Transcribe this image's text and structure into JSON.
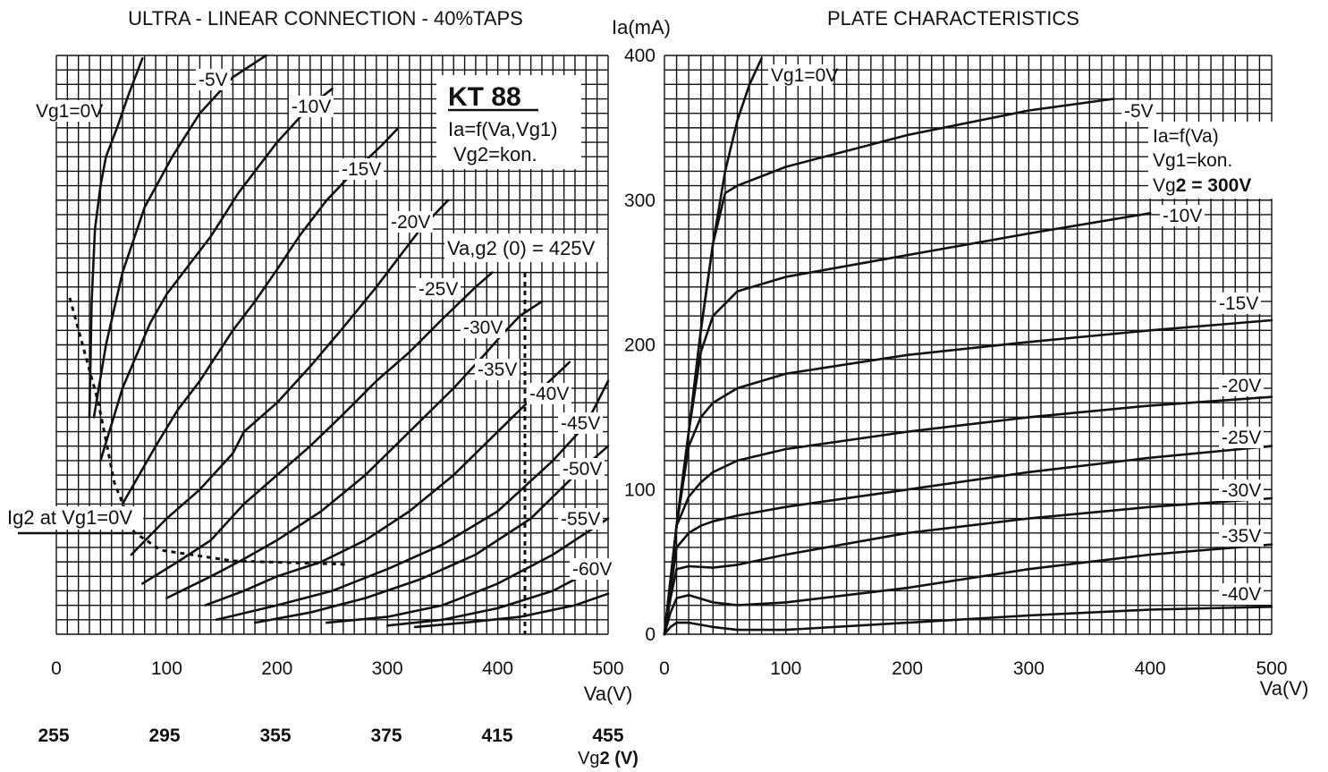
{
  "left_chart": {
    "title": "ULTRA - LINEAR CONNECTION - 40%TAPS",
    "box_title": "KT 88",
    "box_line1": "Ia=f(Va,Vg1)",
    "box_line2": "Vg2=kon.",
    "xlabel": "Va(V)",
    "vg2_label": "Vg2 (V)",
    "vg2_label_prefix": "Vg",
    "vg2_label_suffix": "2 (V)",
    "x_ticks": [
      "0",
      "100",
      "200",
      "300",
      "400",
      "500"
    ],
    "vg2_ticks": [
      "255",
      "295",
      "355",
      "375",
      "415",
      "455"
    ],
    "marker_label": "Va,g2 (0) = 425V",
    "ig2_label": "Ig2 at Vg1=0V",
    "curve_labels": [
      "Vg1=0V",
      "-5V",
      "-10V",
      "-15V",
      "-20V",
      "-25V",
      "-30V",
      "-35V",
      "-40V",
      "-45V",
      "-50V",
      "-55V",
      "-60V"
    ]
  },
  "right_chart": {
    "title": "PLATE CHARACTERISTICS",
    "ylabel": "Ia(mA)",
    "xlabel": "Va(V)",
    "x_ticks": [
      "0",
      "100",
      "200",
      "300",
      "400",
      "500"
    ],
    "y_ticks": [
      "0",
      "100",
      "200",
      "300",
      "400"
    ],
    "box_line1": "Ia=f(Va)",
    "box_line2": "Vg1=kon.",
    "box_line3_prefix": "Vg",
    "box_line3_bold": "2 = 300V",
    "curve_labels": [
      "Vg1=0V",
      "-5V",
      "-10V",
      "-15V",
      "-20V",
      "-25V",
      "-30V",
      "-35V",
      "-40V"
    ]
  },
  "chart_data": [
    {
      "type": "line",
      "title": "ULTRA - LINEAR CONNECTION - 40%TAPS",
      "xlabel": "Va(V)",
      "ylabel": "",
      "xlim": [
        0,
        500
      ],
      "ylim": [
        0,
        400
      ],
      "grid": true,
      "secondary_x_label": "Vg2 (V)",
      "secondary_x_ticks": [
        255,
        295,
        355,
        375,
        415,
        455
      ],
      "series": [
        {
          "name": "Vg1=0V",
          "x": [
            30,
            32,
            35,
            40,
            45,
            55,
            65,
            78
          ],
          "y": [
            150,
            230,
            280,
            310,
            330,
            350,
            372,
            398
          ]
        },
        {
          "name": "-5V",
          "x": [
            34,
            45,
            60,
            80,
            105,
            130,
            160,
            190
          ],
          "y": [
            150,
            200,
            250,
            295,
            330,
            360,
            385,
            400
          ]
        },
        {
          "name": "-10V",
          "x": [
            40,
            60,
            85,
            100,
            115,
            140,
            165,
            200,
            230,
            250
          ],
          "y": [
            120,
            170,
            215,
            235,
            250,
            275,
            305,
            340,
            365,
            377
          ]
        },
        {
          "name": "-15V",
          "x": [
            60,
            90,
            110,
            130,
            160,
            180,
            200,
            220,
            245,
            270,
            295,
            310
          ],
          "y": [
            90,
            130,
            155,
            175,
            210,
            230,
            252,
            275,
            300,
            320,
            338,
            350
          ]
        },
        {
          "name": "-20V",
          "x": [
            68,
            100,
            130,
            160,
            170,
            200,
            230,
            260,
            290,
            310,
            330,
            355
          ],
          "y": [
            55,
            80,
            100,
            125,
            140,
            160,
            185,
            212,
            240,
            260,
            280,
            300
          ]
        },
        {
          "name": "-25V",
          "x": [
            78,
            110,
            140,
            170,
            200,
            230,
            260,
            290,
            320,
            350,
            380,
            395
          ],
          "y": [
            35,
            50,
            65,
            90,
            110,
            130,
            152,
            175,
            195,
            218,
            240,
            250
          ]
        },
        {
          "name": "-30V",
          "x": [
            100,
            140,
            170,
            200,
            240,
            280,
            320,
            360,
            390,
            405,
            420,
            440
          ],
          "y": [
            25,
            40,
            52,
            65,
            85,
            110,
            140,
            170,
            195,
            208,
            220,
            230
          ]
        },
        {
          "name": "-35V",
          "x": [
            135,
            170,
            200,
            240,
            280,
            320,
            360,
            400,
            420,
            440,
            465
          ],
          "y": [
            20,
            30,
            40,
            50,
            65,
            85,
            110,
            140,
            155,
            170,
            188
          ]
        },
        {
          "name": "-40V",
          "x": [
            145,
            200,
            250,
            300,
            350,
            400,
            450,
            480,
            510
          ],
          "y": [
            10,
            20,
            30,
            45,
            62,
            85,
            120,
            145,
            175
          ]
        },
        {
          "name": "-45V",
          "x": [
            180,
            230,
            280,
            330,
            380,
            430,
            470,
            500
          ],
          "y": [
            8,
            15,
            25,
            38,
            55,
            80,
            110,
            130
          ]
        },
        {
          "name": "-50V",
          "x": [
            245,
            300,
            350,
            400,
            450,
            500
          ],
          "y": [
            8,
            12,
            20,
            35,
            55,
            80
          ]
        },
        {
          "name": "-55V",
          "x": [
            300,
            350,
            400,
            450,
            500
          ],
          "y": [
            6,
            10,
            18,
            30,
            50
          ]
        },
        {
          "name": "-60V",
          "x": [
            325,
            370,
            420,
            470,
            500
          ],
          "y": [
            5,
            8,
            12,
            20,
            28
          ]
        }
      ]
    },
    {
      "type": "line",
      "title": "PLATE CHARACTERISTICS",
      "xlabel": "Va(V)",
      "ylabel": "Ia(mA)",
      "xlim": [
        0,
        500
      ],
      "ylim": [
        0,
        400
      ],
      "grid": true,
      "series": [
        {
          "name": "Vg1=0V",
          "x": [
            0,
            10,
            20,
            30,
            40,
            50,
            60,
            70,
            80
          ],
          "y": [
            0,
            75,
            140,
            210,
            270,
            320,
            355,
            380,
            398
          ]
        },
        {
          "name": "-5V",
          "x": [
            0,
            10,
            20,
            30,
            40,
            50,
            60,
            100,
            200,
            300,
            370
          ],
          "y": [
            0,
            75,
            140,
            210,
            270,
            305,
            310,
            323,
            345,
            362,
            370
          ]
        },
        {
          "name": "-10V",
          "x": [
            0,
            10,
            20,
            30,
            40,
            60,
            100,
            200,
            300,
            400
          ],
          "y": [
            0,
            75,
            140,
            195,
            220,
            237,
            247,
            262,
            277,
            291
          ]
        },
        {
          "name": "-15V",
          "x": [
            0,
            10,
            20,
            30,
            40,
            60,
            100,
            200,
            300,
            400,
            500
          ],
          "y": [
            0,
            75,
            130,
            150,
            160,
            170,
            180,
            193,
            202,
            210,
            217
          ]
        },
        {
          "name": "-20V",
          "x": [
            0,
            10,
            20,
            30,
            40,
            60,
            100,
            200,
            300,
            400,
            500
          ],
          "y": [
            0,
            75,
            95,
            105,
            112,
            120,
            128,
            140,
            150,
            158,
            164
          ]
        },
        {
          "name": "-25V",
          "x": [
            0,
            10,
            20,
            30,
            40,
            60,
            100,
            200,
            300,
            400,
            500
          ],
          "y": [
            0,
            60,
            70,
            75,
            78,
            82,
            88,
            100,
            112,
            122,
            130
          ]
        },
        {
          "name": "-30V",
          "x": [
            0,
            5,
            10,
            20,
            40,
            60,
            100,
            200,
            300,
            400,
            500
          ],
          "y": [
            0,
            25,
            45,
            47,
            46,
            48,
            55,
            70,
            80,
            88,
            94
          ]
        },
        {
          "name": "-35V",
          "x": [
            0,
            5,
            10,
            20,
            40,
            60,
            100,
            200,
            300,
            400,
            500
          ],
          "y": [
            0,
            15,
            25,
            27,
            22,
            20,
            22,
            32,
            45,
            55,
            62
          ]
        },
        {
          "name": "-40V",
          "x": [
            0,
            5,
            10,
            20,
            40,
            60,
            100,
            200,
            300,
            400,
            500
          ],
          "y": [
            0,
            5,
            8,
            8,
            5,
            3,
            3,
            8,
            13,
            17,
            19
          ]
        }
      ]
    }
  ]
}
